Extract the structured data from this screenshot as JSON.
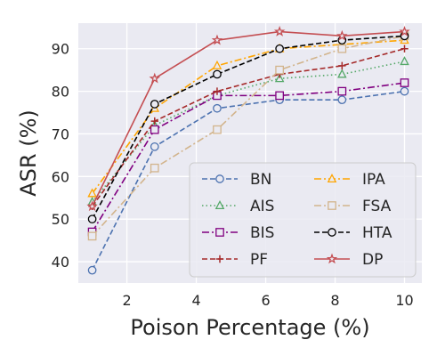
{
  "chart_data": {
    "type": "line",
    "xlabel": "Poison Percentage (%)",
    "ylabel": "ASR (%)",
    "xlim": [
      0.6,
      10.5
    ],
    "ylim": [
      35,
      96
    ],
    "xticks": [
      2,
      4,
      6,
      8,
      10
    ],
    "yticks": [
      40,
      50,
      60,
      70,
      80,
      90
    ],
    "grid": true,
    "legend_position": "lower-right",
    "legend_columns": 2,
    "x": [
      1,
      2.8,
      4.6,
      6.4,
      8.2,
      10
    ],
    "series": [
      {
        "name": "BN",
        "color": "#4c72b0",
        "dash": "dashed",
        "marker": "circle",
        "values": [
          38,
          67,
          76,
          78,
          78,
          80
        ]
      },
      {
        "name": "AIS",
        "color": "#55a868",
        "dash": "dotted",
        "marker": "triangle",
        "values": [
          54,
          72,
          79,
          83,
          84,
          87
        ]
      },
      {
        "name": "BIS",
        "color": "#800080",
        "dash": "dashdot",
        "marker": "square",
        "values": [
          47,
          71,
          79,
          79,
          80,
          82
        ]
      },
      {
        "name": "PF",
        "color": "#a52a2a",
        "dash": "dashed",
        "marker": "plus",
        "values": [
          53,
          73,
          80,
          84,
          86,
          90
        ]
      },
      {
        "name": "IPA",
        "color": "#ffa500",
        "dash": "dashdot",
        "marker": "triangle",
        "values": [
          56,
          76,
          86,
          90,
          91,
          92
        ]
      },
      {
        "name": "FSA",
        "color": "#d2b48c",
        "dash": "dashdot",
        "marker": "square",
        "values": [
          46,
          62,
          71,
          85,
          90,
          93
        ]
      },
      {
        "name": "HTA",
        "color": "#000000",
        "dash": "dashed",
        "marker": "circle",
        "values": [
          50,
          77,
          84,
          90,
          92,
          93
        ]
      },
      {
        "name": "DP",
        "color": "#c44e52",
        "dash": "solid",
        "marker": "star",
        "values": [
          53,
          83,
          92,
          94,
          93,
          94
        ]
      }
    ]
  }
}
